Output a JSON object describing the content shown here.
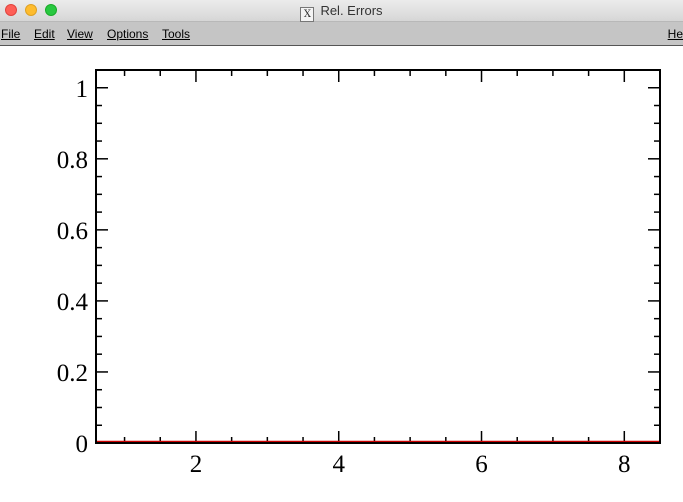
{
  "window": {
    "title": "Rel. Errors",
    "app_icon": "x-window-icon"
  },
  "menu": {
    "items": [
      "File",
      "Edit",
      "View",
      "Options",
      "Tools"
    ],
    "help": "He"
  },
  "chart_data": {
    "type": "line",
    "title": "",
    "xlabel": "",
    "ylabel": "",
    "xlim": [
      0.6,
      8.5
    ],
    "ylim": [
      0,
      1.05
    ],
    "x_ticks": [
      2,
      4,
      6,
      8
    ],
    "y_ticks": [
      0,
      0.2,
      0.4,
      0.6,
      0.8,
      1
    ],
    "x_tick_labels": [
      "2",
      "4",
      "6",
      "8"
    ],
    "y_tick_labels": [
      "0",
      "0.2",
      "0.4",
      "0.6",
      "0.8",
      "1"
    ],
    "grid": false,
    "series": [
      {
        "color": "#cc0000",
        "x": [
          0.6,
          8.5
        ],
        "y": [
          0,
          0
        ]
      }
    ]
  }
}
